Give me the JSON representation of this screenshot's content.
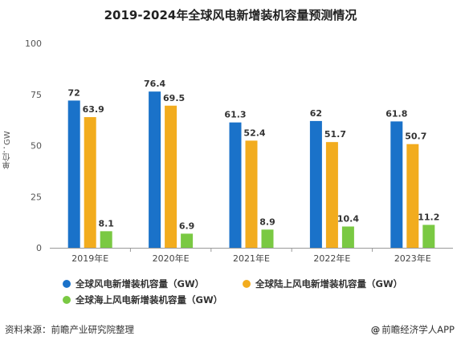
{
  "chart_data": {
    "type": "bar",
    "title": "2019-2024年全球风电新增装机容量预测情况",
    "ylabel": "单位：GW",
    "xlabel": "",
    "ylim": [
      0,
      100
    ],
    "yticks": [
      "0",
      "25",
      "50",
      "75",
      "100"
    ],
    "categories": [
      "2019年E",
      "2020年E",
      "2021年E",
      "2022年E",
      "2023年E"
    ],
    "series": [
      {
        "name": "全球风电新增装机容量（GW）",
        "color": "#1a72c9",
        "values": [
          72,
          76.4,
          61.3,
          62,
          61.8
        ],
        "labels": [
          "72",
          "76.4",
          "61.3",
          "62",
          "61.8"
        ]
      },
      {
        "name": "全球陆上风电新增装机容量（GW）",
        "color": "#f2ac1e",
        "values": [
          63.9,
          69.5,
          52.4,
          51.7,
          50.7
        ],
        "labels": [
          "63.9",
          "69.5",
          "52.4",
          "51.7",
          "50.7"
        ]
      },
      {
        "name": "全球海上风电新增装机容量（GW）",
        "color": "#7ac943",
        "values": [
          8.1,
          6.9,
          8.9,
          10.4,
          11.2
        ],
        "labels": [
          "8.1",
          "6.9",
          "8.9",
          "10.4",
          "11.2"
        ]
      }
    ],
    "legend_position": "bottom",
    "grid": false
  },
  "footer": {
    "source": "资料来源：前瞻产业研究院整理",
    "brand_symbol": "@",
    "brand": "前瞻经济学人APP"
  }
}
